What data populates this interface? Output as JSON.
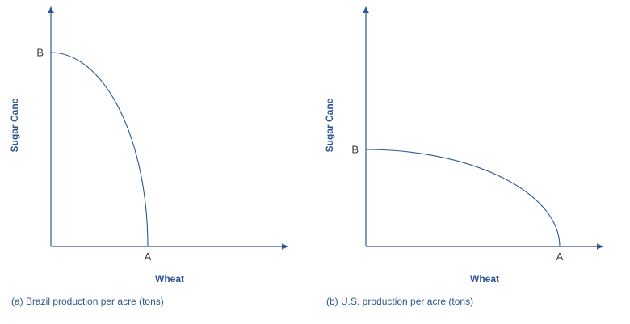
{
  "figure": {
    "background": "#ffffff",
    "accent_color": "#2e5693",
    "point_label_color": "#3a3a3a",
    "description": "Two production possibilities frontier graphs comparing Brazil and U.S. output per acre"
  },
  "chart_data": [
    {
      "type": "line",
      "subtype": "production-possibilities-frontier",
      "title": "(a) Brazil production per acre (tons)",
      "xlabel": "Wheat",
      "ylabel": "Sugar Cane",
      "xlim": [
        0,
        120
      ],
      "ylim": [
        0,
        120
      ],
      "tick_labels": "none (axes are unnumbered, arrows on axis ends)",
      "curve_shape": "concave quarter-ellipse bowed outward from origin, from B on y-axis to A on x-axis",
      "x_intercept_A": 50,
      "y_intercept_B": 100,
      "points": [
        {
          "label": "B",
          "x": 0,
          "y": 100
        },
        {
          "label": "A",
          "x": 50,
          "y": 0
        }
      ]
    },
    {
      "type": "line",
      "subtype": "production-possibilities-frontier",
      "title": "(b) U.S. production per acre (tons)",
      "xlabel": "Wheat",
      "ylabel": "Sugar Cane",
      "xlim": [
        0,
        120
      ],
      "ylim": [
        0,
        120
      ],
      "tick_labels": "none (axes are unnumbered, arrows on axis ends)",
      "curve_shape": "concave quarter-ellipse bowed outward from origin, from B on y-axis to A on x-axis",
      "x_intercept_A": 100,
      "y_intercept_B": 50,
      "points": [
        {
          "label": "B",
          "x": 0,
          "y": 50
        },
        {
          "label": "A",
          "x": 100,
          "y": 0
        }
      ]
    }
  ]
}
